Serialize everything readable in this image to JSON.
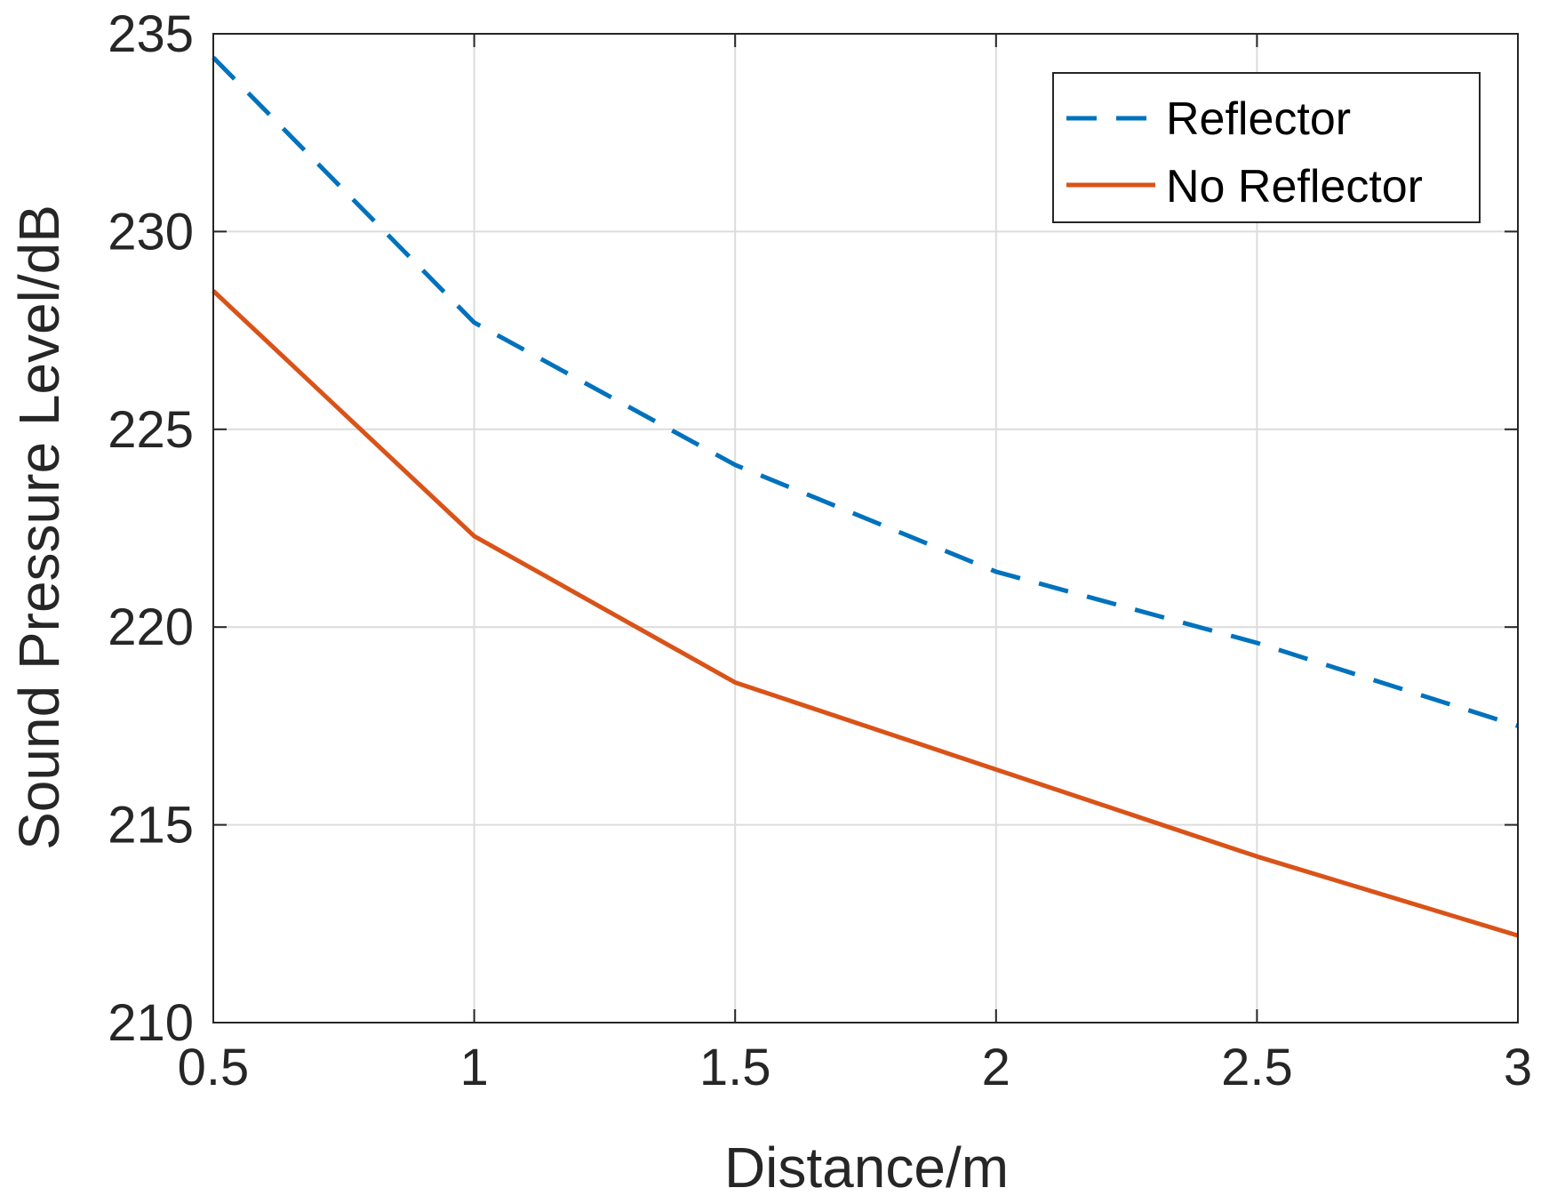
{
  "chart_data": {
    "type": "line",
    "title": "",
    "xlabel": "Distance/m",
    "ylabel": "Sound Pressure Level/dB",
    "x": [
      0.5,
      1,
      1.5,
      2,
      2.5,
      3
    ],
    "xlim": [
      0.5,
      3
    ],
    "ylim": [
      210,
      235
    ],
    "xticks": [
      0.5,
      1,
      1.5,
      2,
      2.5,
      3
    ],
    "xtick_labels": [
      "0.5",
      "1",
      "1.5",
      "2",
      "2.5",
      "3"
    ],
    "yticks": [
      210,
      215,
      220,
      225,
      230,
      235
    ],
    "ytick_labels": [
      "210",
      "215",
      "220",
      "225",
      "230",
      "235"
    ],
    "grid": true,
    "legend_position": "top-right",
    "series": [
      {
        "name": "Reflector",
        "values": [
          234.4,
          227.7,
          224.1,
          221.4,
          219.6,
          217.5
        ],
        "color": "#0072BD",
        "style": "dashed"
      },
      {
        "name": "No Reflector",
        "values": [
          228.5,
          222.3,
          218.6,
          216.4,
          214.2,
          212.2
        ],
        "color": "#D95319",
        "style": "solid"
      }
    ]
  }
}
